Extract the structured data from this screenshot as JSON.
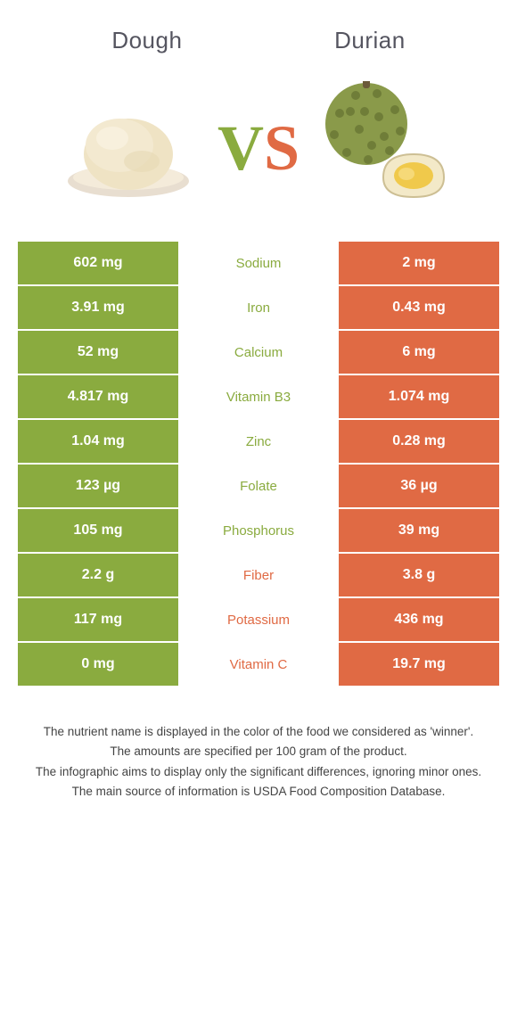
{
  "colors": {
    "left": "#8aab3f",
    "right": "#e06a44",
    "background": "#ffffff",
    "title": "#555560",
    "notes": "#444444"
  },
  "header": {
    "left_title": "Dough",
    "right_title": "Durian",
    "vs_v": "V",
    "vs_s": "S"
  },
  "rows": [
    {
      "label": "Sodium",
      "left": "602 mg",
      "right": "2 mg",
      "winner": "left"
    },
    {
      "label": "Iron",
      "left": "3.91 mg",
      "right": "0.43 mg",
      "winner": "left"
    },
    {
      "label": "Calcium",
      "left": "52 mg",
      "right": "6 mg",
      "winner": "left"
    },
    {
      "label": "Vitamin B3",
      "left": "4.817 mg",
      "right": "1.074 mg",
      "winner": "left"
    },
    {
      "label": "Zinc",
      "left": "1.04 mg",
      "right": "0.28 mg",
      "winner": "left"
    },
    {
      "label": "Folate",
      "left": "123 µg",
      "right": "36 µg",
      "winner": "left"
    },
    {
      "label": "Phosphorus",
      "left": "105 mg",
      "right": "39 mg",
      "winner": "left"
    },
    {
      "label": "Fiber",
      "left": "2.2 g",
      "right": "3.8 g",
      "winner": "right"
    },
    {
      "label": "Potassium",
      "left": "117 mg",
      "right": "436 mg",
      "winner": "right"
    },
    {
      "label": "Vitamin C",
      "left": "0 mg",
      "right": "19.7 mg",
      "winner": "right"
    }
  ],
  "notes": [
    "The nutrient name is displayed in the color of the food we considered as 'winner'.",
    "The amounts are specified per 100 gram of the product.",
    "The infographic aims to display only the significant differences, ignoring minor ones.",
    "The main source of information is USDA Food Composition Database."
  ]
}
